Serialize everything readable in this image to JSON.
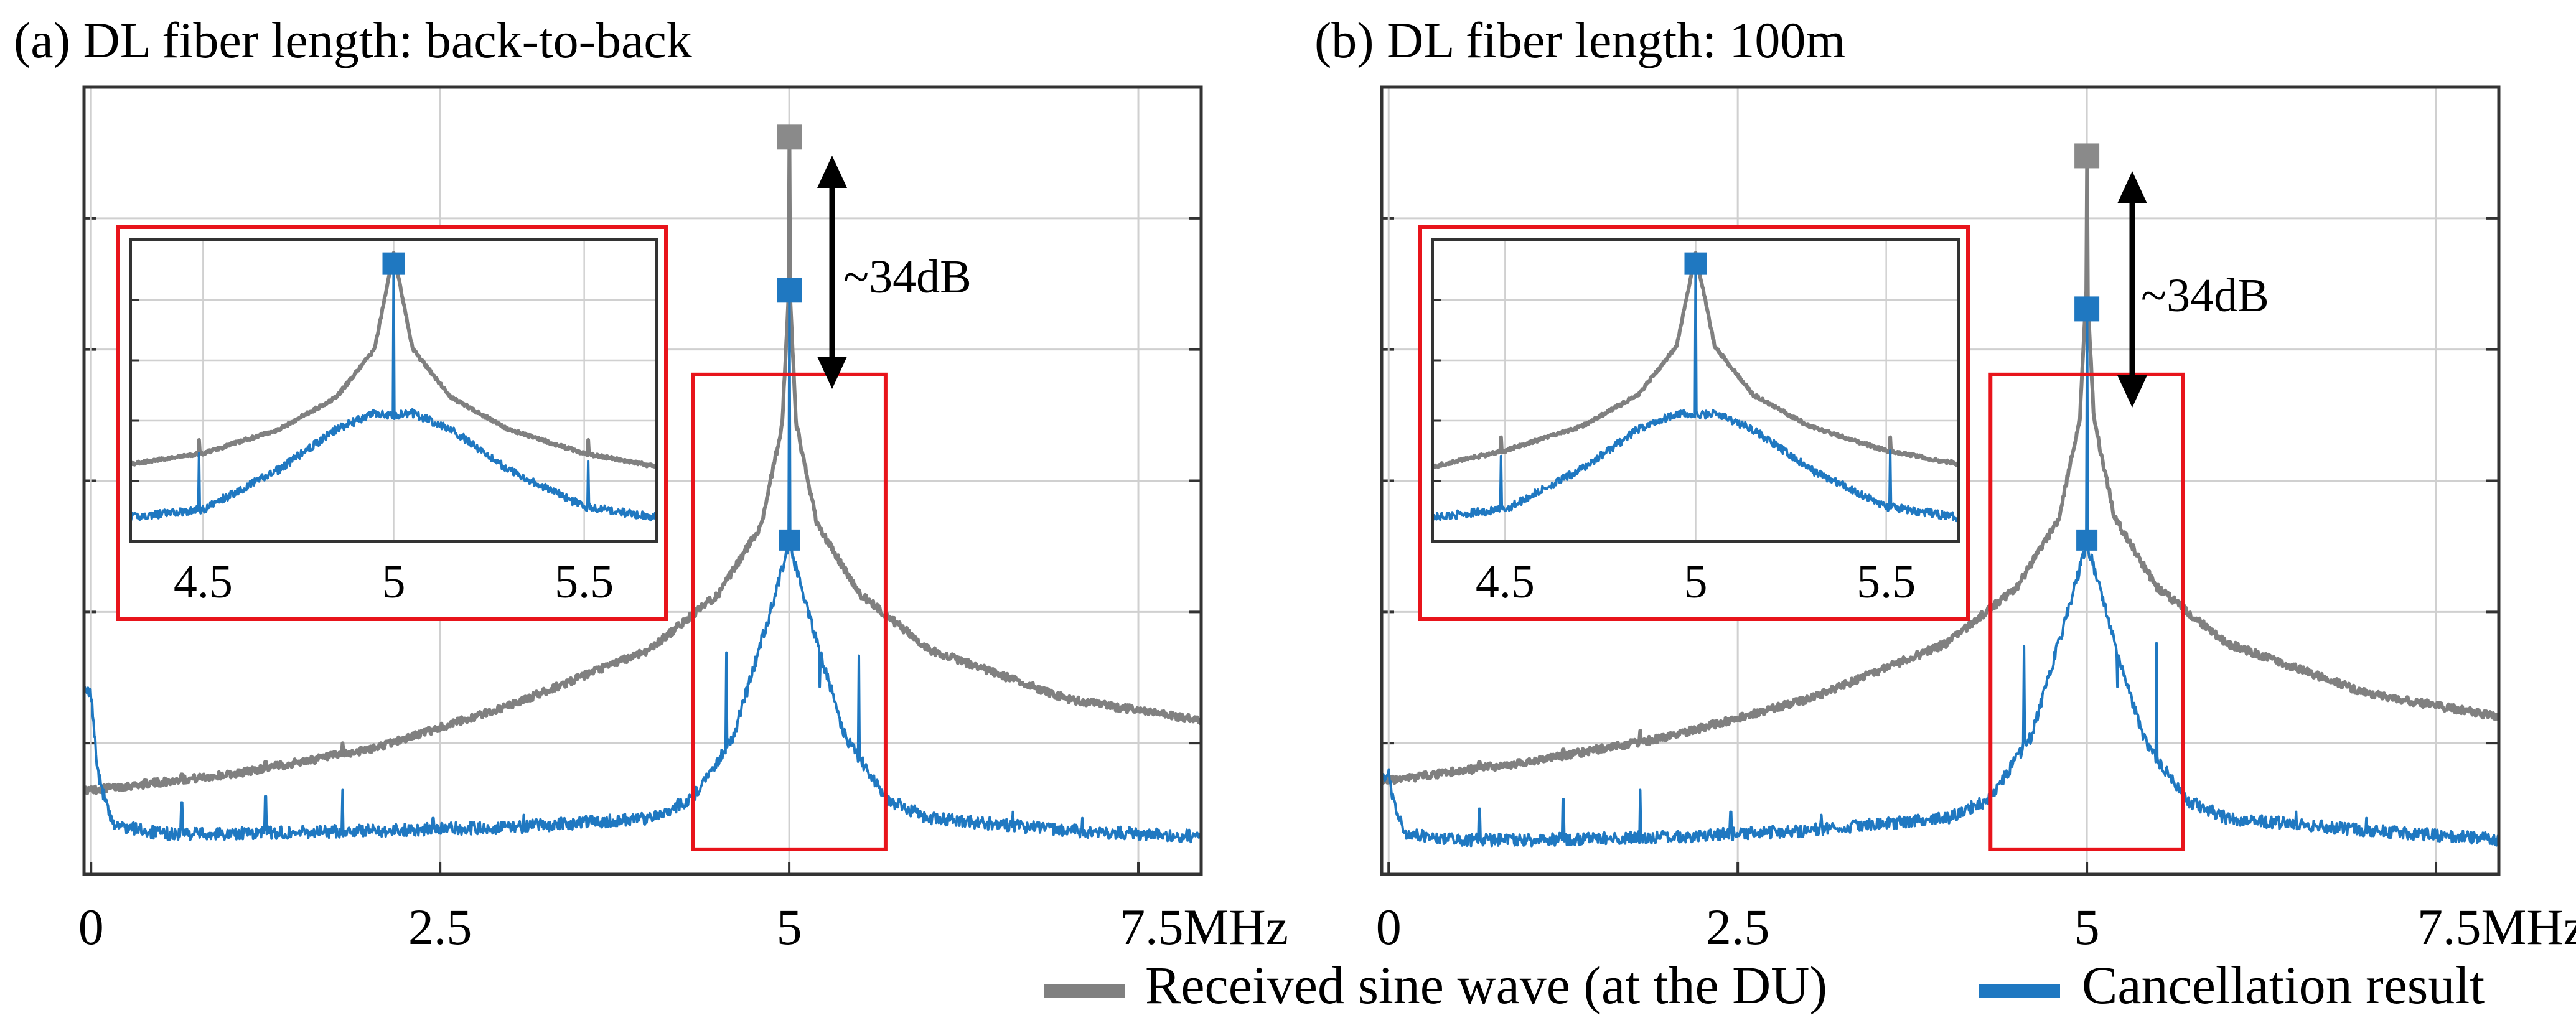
{
  "figure": {
    "annotation_text": "~34dB",
    "legend": [
      {
        "label": "Received sine wave (at the DU)",
        "color": "#808080"
      },
      {
        "label": "Cancellation result",
        "color": "#1f78c1"
      }
    ],
    "colors": {
      "received": "#808080",
      "cancelled": "#1f78c1",
      "zoom_box": "#e8141b",
      "axes": "#333333",
      "grid": "#d0d0d0",
      "background": "#ffffff"
    }
  },
  "chart_data": [
    {
      "type": "line",
      "title": "(a) DL fiber length: back-to-back",
      "xlabel": "",
      "ylabel": "",
      "x_unit": "MHz",
      "xlim": [
        -0.05,
        7.95
      ],
      "ylim": [
        0,
        10
      ],
      "x_ticks": [
        0,
        2.5,
        5,
        7.5
      ],
      "x_tick_labels": [
        "0",
        "2.5",
        "5",
        "7.5MHz"
      ],
      "y_gridlines": 6,
      "grid": true,
      "series": [
        {
          "name": "Received sine wave (at the DU)",
          "color": "#808080",
          "floor": [
            [
              0,
              0.75
            ],
            [
              1,
              1.0
            ],
            [
              2,
              1.4
            ],
            [
              3,
              2.1
            ],
            [
              4,
              3.0
            ],
            [
              4.5,
              3.9
            ],
            [
              4.8,
              5.0
            ],
            [
              4.95,
              6.6
            ],
            [
              5,
              8.9
            ],
            [
              5.05,
              6.6
            ],
            [
              5.2,
              5.0
            ],
            [
              5.5,
              3.9
            ],
            [
              6,
              3.0
            ],
            [
              7,
              2.2
            ],
            [
              8,
              1.85
            ]
          ],
          "spikes": [
            [
              0.65,
              1.0
            ],
            [
              1.25,
              1.2
            ],
            [
              1.8,
              1.5
            ]
          ],
          "peak": {
            "x": 5,
            "y": 11.2
          }
        },
        {
          "name": "Cancellation result",
          "color": "#1f78c1",
          "floor": [
            [
              0,
              2.3
            ],
            [
              0.05,
              1.0
            ],
            [
              0.15,
              0.2
            ],
            [
              0.5,
              0.05
            ],
            [
              1,
              0.05
            ],
            [
              2,
              0.1
            ],
            [
              3,
              0.15
            ],
            [
              4,
              0.3
            ],
            [
              4.3,
              0.6
            ],
            [
              4.6,
              1.6
            ],
            [
              4.85,
              3.5
            ],
            [
              5,
              4.7
            ],
            [
              5.15,
              3.5
            ],
            [
              5.4,
              1.6
            ],
            [
              5.7,
              0.6
            ],
            [
              6,
              0.3
            ],
            [
              7,
              0.1
            ],
            [
              8,
              0.0
            ]
          ],
          "spikes": [
            [
              0.65,
              0.55
            ],
            [
              1.25,
              0.65
            ],
            [
              1.8,
              0.75
            ],
            [
              2.45,
              0.3
            ],
            [
              3.1,
              0.35
            ],
            [
              4.55,
              2.95
            ],
            [
              5.22,
              2.4
            ],
            [
              5.5,
              2.9
            ],
            [
              5.9,
              0.5
            ],
            [
              6.6,
              0.4
            ],
            [
              7.1,
              0.3
            ]
          ],
          "peak": {
            "x": 5,
            "y": 8.75
          },
          "sub_peak": {
            "x": 5,
            "y": 4.75
          }
        }
      ],
      "inset": {
        "xlim": [
          4.31,
          5.69
        ],
        "x_ticks": [
          4.5,
          5,
          5.5
        ],
        "x_tick_labels": [
          "4.5",
          "5",
          "5.5"
        ],
        "ylim": [
          0,
          10
        ],
        "received_floor": [
          [
            4.31,
            2.1
          ],
          [
            4.5,
            2.5
          ],
          [
            4.7,
            3.4
          ],
          [
            4.85,
            4.6
          ],
          [
            4.95,
            6.4
          ],
          [
            5,
            10
          ],
          [
            5.05,
            6.4
          ],
          [
            5.15,
            4.6
          ],
          [
            5.3,
            3.4
          ],
          [
            5.5,
            2.5
          ],
          [
            5.69,
            2.0
          ]
        ],
        "cancelled_floor": [
          [
            4.31,
            0.1
          ],
          [
            4.5,
            0.4
          ],
          [
            4.7,
            1.9
          ],
          [
            4.85,
            3.4
          ],
          [
            4.95,
            4.0
          ],
          [
            5,
            3.9
          ],
          [
            5.05,
            4.0
          ],
          [
            5.15,
            3.4
          ],
          [
            5.3,
            1.9
          ],
          [
            5.5,
            0.5
          ],
          [
            5.69,
            0.1
          ]
        ],
        "received_spikes": [
          [
            4.49,
            3.0
          ],
          [
            5.51,
            3.0
          ]
        ],
        "cancelled_spikes": [
          [
            4.49,
            2.5
          ],
          [
            5.51,
            2.2
          ]
        ],
        "received_peak": 10,
        "cancelled_peak": 9.6
      },
      "zoom_box": {
        "x": [
          4.31,
          5.69
        ],
        "y": [
          -0.2,
          7.4
        ]
      }
    },
    {
      "type": "line",
      "title": "(b) DL fiber length: 100m",
      "xlabel": "",
      "ylabel": "",
      "x_unit": "MHz",
      "xlim": [
        -0.05,
        7.95
      ],
      "ylim": [
        0,
        10
      ],
      "x_ticks": [
        0,
        2.5,
        5,
        7.5
      ],
      "x_tick_labels": [
        "0",
        "2.5",
        "5",
        "7.5MHz"
      ],
      "y_gridlines": 6,
      "grid": true,
      "series": [
        {
          "name": "Received sine wave (at the DU)",
          "color": "#808080",
          "floor": [
            [
              0,
              0.9
            ],
            [
              1,
              1.2
            ],
            [
              2,
              1.6
            ],
            [
              3,
              2.2
            ],
            [
              4,
              3.1
            ],
            [
              4.5,
              4.0
            ],
            [
              4.8,
              5.1
            ],
            [
              4.95,
              6.7
            ],
            [
              5,
              8.9
            ],
            [
              5.05,
              6.7
            ],
            [
              5.2,
              5.1
            ],
            [
              5.5,
              4.0
            ],
            [
              6,
              3.1
            ],
            [
              7,
              2.3
            ],
            [
              8,
              1.9
            ]
          ],
          "spikes": [
            [
              0.65,
              1.2
            ],
            [
              1.25,
              1.4
            ],
            [
              1.8,
              1.7
            ]
          ],
          "peak": {
            "x": 5,
            "y": 10.9
          }
        },
        {
          "name": "Cancellation result",
          "color": "#1f78c1",
          "floor": [
            [
              0,
              1.0
            ],
            [
              0.03,
              0.6
            ],
            [
              0.12,
              0.05
            ],
            [
              0.5,
              -0.05
            ],
            [
              1,
              -0.05
            ],
            [
              2,
              0.0
            ],
            [
              3,
              0.1
            ],
            [
              4,
              0.3
            ],
            [
              4.3,
              0.6
            ],
            [
              4.6,
              1.6
            ],
            [
              4.85,
              3.5
            ],
            [
              5,
              4.7
            ],
            [
              5.15,
              3.5
            ],
            [
              5.4,
              1.6
            ],
            [
              5.7,
              0.6
            ],
            [
              6,
              0.3
            ],
            [
              7,
              0.1
            ],
            [
              8,
              -0.05
            ]
          ],
          "spikes": [
            [
              0.65,
              0.45
            ],
            [
              1.25,
              0.6
            ],
            [
              1.8,
              0.75
            ],
            [
              2.45,
              0.4
            ],
            [
              3.1,
              0.35
            ],
            [
              4.55,
              3.05
            ],
            [
              5.22,
              2.4
            ],
            [
              5.5,
              3.1
            ],
            [
              5.9,
              0.5
            ],
            [
              6.5,
              0.4
            ],
            [
              7.0,
              0.3
            ]
          ],
          "peak": {
            "x": 5,
            "y": 8.45
          },
          "sub_peak": {
            "x": 5,
            "y": 4.75
          }
        }
      ],
      "inset": {
        "xlim": [
          4.31,
          5.69
        ],
        "x_ticks": [
          4.5,
          5,
          5.5
        ],
        "x_tick_labels": [
          "4.5",
          "5",
          "5.5"
        ],
        "ylim": [
          0,
          10
        ],
        "received_floor": [
          [
            4.31,
            2.0
          ],
          [
            4.5,
            2.6
          ],
          [
            4.7,
            3.5
          ],
          [
            4.85,
            4.7
          ],
          [
            4.95,
            6.5
          ],
          [
            5,
            10
          ],
          [
            5.05,
            6.5
          ],
          [
            5.15,
            4.7
          ],
          [
            5.3,
            3.5
          ],
          [
            5.5,
            2.6
          ],
          [
            5.69,
            2.1
          ]
        ],
        "cancelled_floor": [
          [
            4.31,
            0.1
          ],
          [
            4.5,
            0.4
          ],
          [
            4.7,
            1.9
          ],
          [
            4.85,
            3.4
          ],
          [
            4.95,
            4.0
          ],
          [
            5,
            3.9
          ],
          [
            5.05,
            4.0
          ],
          [
            5.15,
            3.4
          ],
          [
            5.3,
            1.9
          ],
          [
            5.5,
            0.5
          ],
          [
            5.69,
            0.1
          ]
        ],
        "received_spikes": [
          [
            4.49,
            3.1
          ],
          [
            5.51,
            3.1
          ]
        ],
        "cancelled_spikes": [
          [
            4.49,
            2.4
          ],
          [
            5.51,
            2.6
          ]
        ],
        "received_peak": 10,
        "cancelled_peak": 9.6
      },
      "zoom_box": {
        "x": [
          4.31,
          5.69
        ],
        "y": [
          -0.2,
          7.4
        ]
      }
    }
  ]
}
